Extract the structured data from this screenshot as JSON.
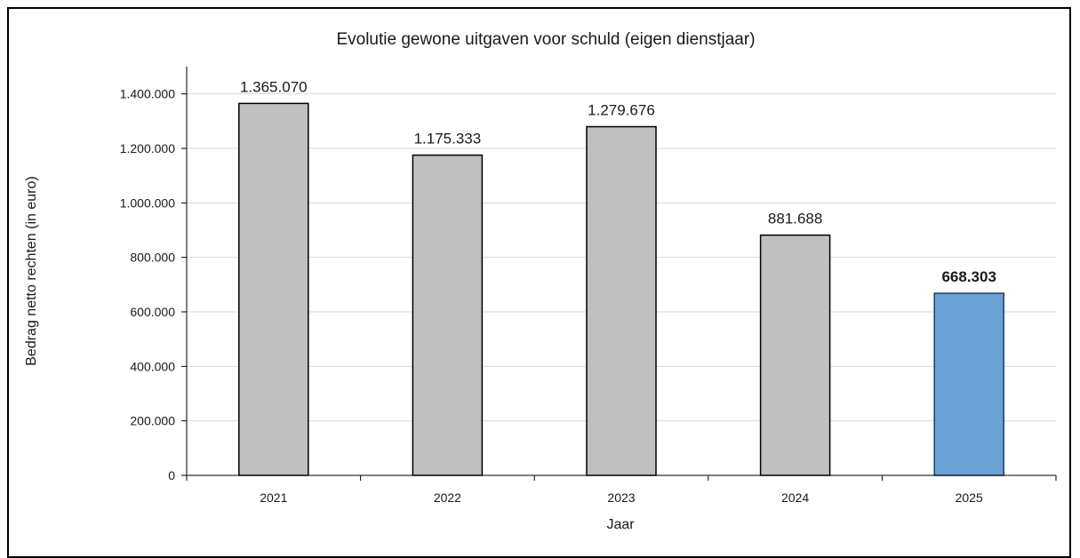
{
  "chart_data": {
    "type": "bar",
    "title": "Evolutie gewone uitgaven voor schuld (eigen dienstjaar)",
    "xlabel": "Jaar",
    "ylabel": "Bedrag netto rechten  (in euro)",
    "categories": [
      "2021",
      "2022",
      "2023",
      "2024",
      "2025"
    ],
    "values": [
      1365070,
      1175333,
      1279676,
      881688,
      668303
    ],
    "value_labels": [
      "1.365.070",
      "1.175.333",
      "1.279.676",
      "881.688",
      "668.303"
    ],
    "ylim": [
      0,
      1500000
    ],
    "yticks": [
      0,
      200000,
      400000,
      600000,
      800000,
      1000000,
      1200000,
      1400000
    ],
    "ytick_labels": [
      "0",
      "200.000",
      "400.000",
      "600.000",
      "800.000",
      "1.000.000",
      "1.200.000",
      "1.400.000"
    ],
    "grid": true,
    "highlight_index": 4,
    "colors": {
      "bar": "#c0c0c0",
      "bar_highlight": "#6aa2d6",
      "bar_stroke": "#000000",
      "bar_highlight_stroke": "#1f3a6a",
      "label_highlight": "#1f72c4",
      "grid": "#d9d9d9",
      "axis": "#000000"
    }
  }
}
